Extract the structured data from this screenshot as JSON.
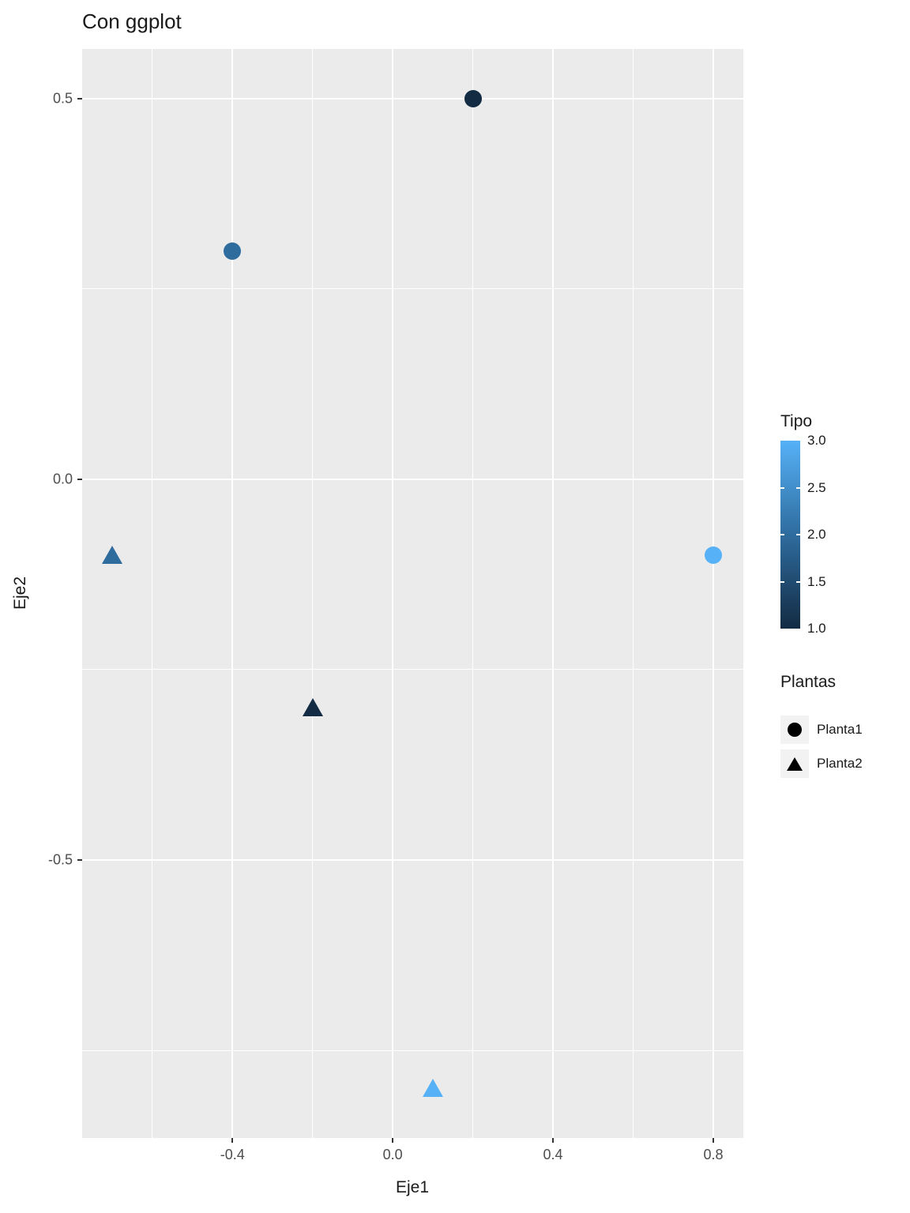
{
  "chart_data": {
    "type": "scatter",
    "title": "Con ggplot",
    "xlabel": "Eje1",
    "ylabel": "Eje2",
    "xlim": [
      -0.775,
      0.875
    ],
    "ylim": [
      -0.865,
      0.565
    ],
    "x_major_ticks": [
      -0.4,
      0.0,
      0.4,
      0.8
    ],
    "x_tick_labels": [
      "-0.4",
      "0.0",
      "0.4",
      "0.8"
    ],
    "x_minor_ticks": [
      -0.6,
      -0.2,
      0.2,
      0.6
    ],
    "y_major_ticks": [
      0.5,
      0.0,
      -0.5
    ],
    "y_tick_labels": [
      "0.5",
      "0.0",
      "-0.5"
    ],
    "y_minor_ticks": [
      0.25,
      -0.25,
      -0.75
    ],
    "grid": true,
    "panel_background": "#EBEBEB",
    "grid_color": "#FFFFFF",
    "axis_text_color": "#4D4D4D",
    "tick_color": "#333333",
    "series": [
      {
        "name": "Planta1",
        "shape": "circle",
        "points": [
          {
            "x": 0.2,
            "y": 0.5,
            "tipo": 1
          },
          {
            "x": -0.4,
            "y": 0.3,
            "tipo": 2
          },
          {
            "x": 0.8,
            "y": -0.1,
            "tipo": 3
          }
        ]
      },
      {
        "name": "Planta2",
        "shape": "triangle",
        "points": [
          {
            "x": -0.7,
            "y": -0.1,
            "tipo": 2
          },
          {
            "x": -0.2,
            "y": -0.3,
            "tipo": 1
          },
          {
            "x": 0.1,
            "y": -0.8,
            "tipo": 3
          }
        ]
      }
    ],
    "tipo_colors": {
      "1": "#132B43",
      "2": "#2E6C9E",
      "3": "#56B1F7"
    },
    "color_scale": {
      "title": "Tipo",
      "low_value": 1.0,
      "high_value": 3.0,
      "low_color": "#132B43",
      "mid_color": "#2E6C9E",
      "high_color": "#56B1F7",
      "breaks": [
        3.0,
        2.5,
        2.0,
        1.5,
        1.0
      ],
      "break_labels": [
        "3.0",
        "2.5",
        "2.0",
        "1.5",
        "1.0"
      ],
      "legend_position": "right"
    },
    "shape_legend": {
      "title": "Plantas",
      "items": [
        {
          "label": "Planta1",
          "shape": "circle"
        },
        {
          "label": "Planta2",
          "shape": "triangle"
        }
      ],
      "legend_position": "right"
    }
  }
}
